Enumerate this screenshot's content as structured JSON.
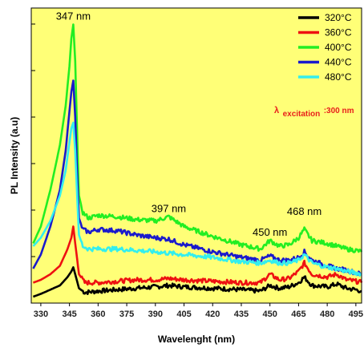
{
  "chart_data": {
    "type": "line",
    "title": "",
    "xlabel": "Wavelenght (nm)",
    "ylabel": "PL Intensity (a.u)",
    "xlim": [
      325,
      498
    ],
    "ylim": [
      0,
      100
    ],
    "x_ticks": [
      330,
      345,
      360,
      375,
      390,
      405,
      420,
      435,
      450,
      465,
      480,
      495
    ],
    "y_tick_labels_shown": false,
    "background_color": "#FFFF77",
    "legend_position": "top-right",
    "annotations": [
      {
        "text": "347 nm",
        "x": 347,
        "y": 97
      },
      {
        "text": "397 nm",
        "x": 397,
        "y": 28.5
      },
      {
        "text": "450 nm",
        "x": 450,
        "y": 20
      },
      {
        "text": "468 nm",
        "x": 468,
        "y": 27.5
      }
    ],
    "excitation_label": {
      "lambda": "λ",
      "sub": "excitation",
      "value": ":300 nm"
    },
    "series": [
      {
        "name": "320°C",
        "color": "#000000",
        "points": [
          [
            326,
            0
          ],
          [
            330,
            1
          ],
          [
            335,
            2.5
          ],
          [
            340,
            4
          ],
          [
            344,
            7
          ],
          [
            346,
            9
          ],
          [
            347,
            10.5
          ],
          [
            348,
            8
          ],
          [
            350,
            3
          ],
          [
            353,
            1.5
          ],
          [
            360,
            2
          ],
          [
            370,
            2.5
          ],
          [
            380,
            3
          ],
          [
            390,
            3.5
          ],
          [
            397,
            4
          ],
          [
            405,
            3.5
          ],
          [
            420,
            3
          ],
          [
            435,
            2.5
          ],
          [
            445,
            2
          ],
          [
            450,
            4
          ],
          [
            455,
            3
          ],
          [
            460,
            3.5
          ],
          [
            465,
            5
          ],
          [
            468,
            7
          ],
          [
            472,
            4
          ],
          [
            480,
            3.5
          ],
          [
            485,
            4.5
          ],
          [
            490,
            3
          ],
          [
            495,
            2.5
          ],
          [
            498,
            2
          ]
        ]
      },
      {
        "name": "360°C",
        "color": "#ee1111",
        "points": [
          [
            326,
            5
          ],
          [
            330,
            6
          ],
          [
            335,
            8
          ],
          [
            340,
            11
          ],
          [
            344,
            17
          ],
          [
            346,
            21
          ],
          [
            347,
            25
          ],
          [
            348,
            19
          ],
          [
            350,
            8
          ],
          [
            353,
            5
          ],
          [
            360,
            5
          ],
          [
            370,
            5.5
          ],
          [
            380,
            6
          ],
          [
            390,
            6
          ],
          [
            397,
            6.5
          ],
          [
            405,
            6
          ],
          [
            420,
            5.5
          ],
          [
            435,
            5
          ],
          [
            445,
            5
          ],
          [
            450,
            8
          ],
          [
            455,
            6
          ],
          [
            460,
            6.5
          ],
          [
            465,
            9
          ],
          [
            468,
            12
          ],
          [
            472,
            8
          ],
          [
            480,
            7
          ],
          [
            485,
            8
          ],
          [
            490,
            6
          ],
          [
            495,
            5.5
          ],
          [
            498,
            5
          ]
        ]
      },
      {
        "name": "400°C",
        "color": "#22ee22",
        "points": [
          [
            326,
            19
          ],
          [
            330,
            25
          ],
          [
            335,
            38
          ],
          [
            340,
            54
          ],
          [
            343,
            68
          ],
          [
            345,
            82
          ],
          [
            346,
            92
          ],
          [
            347,
            97
          ],
          [
            348,
            84
          ],
          [
            349,
            58
          ],
          [
            350,
            36
          ],
          [
            352,
            30
          ],
          [
            355,
            28
          ],
          [
            360,
            29
          ],
          [
            370,
            28.5
          ],
          [
            380,
            27.5
          ],
          [
            390,
            27
          ],
          [
            397,
            28.5
          ],
          [
            405,
            25
          ],
          [
            420,
            21.5
          ],
          [
            435,
            18.5
          ],
          [
            445,
            17
          ],
          [
            450,
            20
          ],
          [
            455,
            18
          ],
          [
            460,
            18.5
          ],
          [
            465,
            21
          ],
          [
            468,
            24
          ],
          [
            472,
            20
          ],
          [
            480,
            19
          ],
          [
            485,
            18
          ],
          [
            490,
            17
          ],
          [
            495,
            16.5
          ],
          [
            498,
            16
          ]
        ]
      },
      {
        "name": "440°C",
        "color": "#1a1acc",
        "points": [
          [
            326,
            10
          ],
          [
            330,
            15
          ],
          [
            335,
            25
          ],
          [
            340,
            38
          ],
          [
            343,
            52
          ],
          [
            345,
            66
          ],
          [
            346,
            73
          ],
          [
            347,
            77
          ],
          [
            348,
            64
          ],
          [
            349,
            44
          ],
          [
            350,
            28
          ],
          [
            352,
            24
          ],
          [
            355,
            23
          ],
          [
            360,
            24
          ],
          [
            370,
            23.5
          ],
          [
            380,
            22
          ],
          [
            390,
            21
          ],
          [
            397,
            20.5
          ],
          [
            405,
            18.5
          ],
          [
            420,
            16
          ],
          [
            435,
            14
          ],
          [
            445,
            13
          ],
          [
            450,
            14.5
          ],
          [
            455,
            13
          ],
          [
            460,
            13
          ],
          [
            465,
            14
          ],
          [
            468,
            16
          ],
          [
            472,
            13
          ],
          [
            480,
            11
          ],
          [
            485,
            10
          ],
          [
            490,
            9.5
          ],
          [
            495,
            8.5
          ],
          [
            498,
            8
          ]
        ]
      },
      {
        "name": "480°C",
        "color": "#33eeee",
        "points": [
          [
            326,
            18
          ],
          [
            330,
            21
          ],
          [
            335,
            27
          ],
          [
            340,
            36
          ],
          [
            343,
            45
          ],
          [
            345,
            55
          ],
          [
            346,
            60
          ],
          [
            347,
            62
          ],
          [
            348,
            52
          ],
          [
            349,
            36
          ],
          [
            350,
            22
          ],
          [
            352,
            18
          ],
          [
            355,
            17
          ],
          [
            360,
            17
          ],
          [
            370,
            17
          ],
          [
            380,
            16.5
          ],
          [
            390,
            16
          ],
          [
            397,
            15.5
          ],
          [
            405,
            15
          ],
          [
            420,
            14
          ],
          [
            435,
            12.5
          ],
          [
            445,
            12
          ],
          [
            450,
            13
          ],
          [
            455,
            12
          ],
          [
            460,
            12
          ],
          [
            465,
            13
          ],
          [
            468,
            15
          ],
          [
            472,
            12
          ],
          [
            480,
            10.5
          ],
          [
            485,
            10
          ],
          [
            490,
            9
          ],
          [
            495,
            8.5
          ],
          [
            498,
            8
          ]
        ]
      }
    ]
  }
}
